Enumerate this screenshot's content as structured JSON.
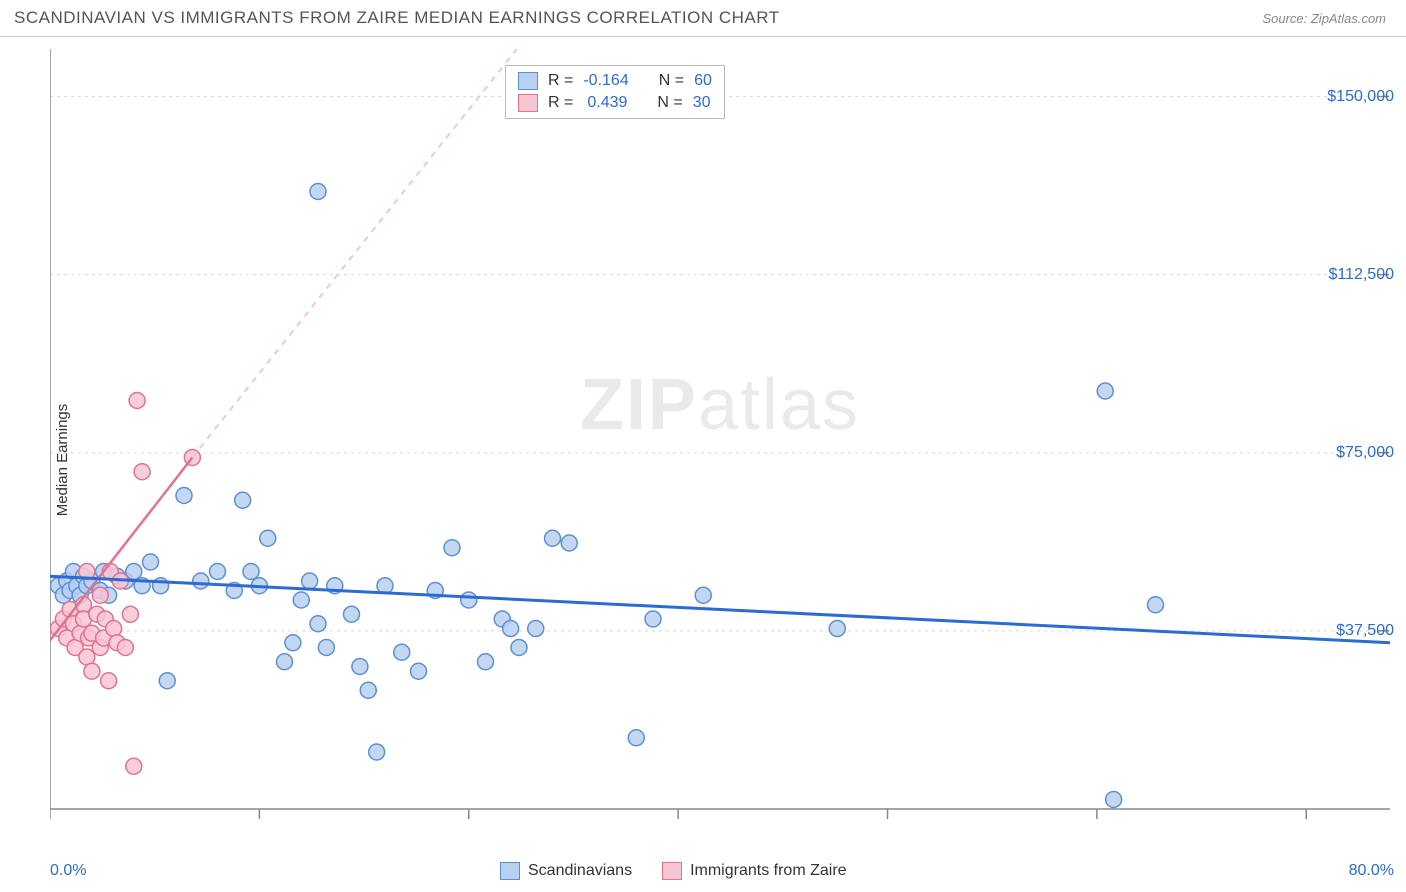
{
  "header": {
    "title": "SCANDINAVIAN VS IMMIGRANTS FROM ZAIRE MEDIAN EARNINGS CORRELATION CHART",
    "source": "Source: ZipAtlas.com"
  },
  "watermark": {
    "zip": "ZIP",
    "atlas": "atlas"
  },
  "chart": {
    "type": "scatter",
    "ylabel": "Median Earnings",
    "background_color": "#ffffff",
    "grid_color": "#d8d8d8",
    "axis_color": "#888888",
    "tick_color": "#888888",
    "label_color_axis": "#2a6bd4",
    "xlim": [
      0,
      80
    ],
    "ylim": [
      0,
      160000
    ],
    "x_axis": {
      "left_label": "0.0%",
      "right_label": "80.0%",
      "tick_positions_pct": [
        0,
        12.5,
        25,
        37.5,
        50,
        62.5,
        75
      ]
    },
    "y_axis": {
      "ticks": [
        {
          "value": 37500,
          "label": "$37,500"
        },
        {
          "value": 75000,
          "label": "$75,000"
        },
        {
          "value": 112500,
          "label": "$112,500"
        },
        {
          "value": 150000,
          "label": "$150,000"
        }
      ]
    },
    "series": [
      {
        "name": "Scandinavians",
        "marker_fill": "#b8d0ef",
        "marker_stroke": "#5b8fd6",
        "marker_radius": 8,
        "marker_opacity": 0.85,
        "R": "-0.164",
        "N": "60",
        "trend": {
          "color": "#2a6bd4",
          "width": 3,
          "dash": "none",
          "x1": 0,
          "y1": 49000,
          "x2": 80,
          "y2": 35000
        },
        "points": [
          [
            0.5,
            47000
          ],
          [
            0.8,
            45000
          ],
          [
            1.0,
            48000
          ],
          [
            1.2,
            46000
          ],
          [
            1.4,
            50000
          ],
          [
            1.6,
            47000
          ],
          [
            1.8,
            45000
          ],
          [
            2.0,
            49000
          ],
          [
            2.2,
            47000
          ],
          [
            2.5,
            48000
          ],
          [
            3.0,
            46000
          ],
          [
            3.2,
            50000
          ],
          [
            3.5,
            45000
          ],
          [
            4.0,
            49000
          ],
          [
            4.5,
            48000
          ],
          [
            5.0,
            50000
          ],
          [
            5.5,
            47000
          ],
          [
            6.0,
            52000
          ],
          [
            6.6,
            47000
          ],
          [
            7.0,
            27000
          ],
          [
            8.0,
            66000
          ],
          [
            9.0,
            48000
          ],
          [
            10.0,
            50000
          ],
          [
            11.0,
            46000
          ],
          [
            11.5,
            65000
          ],
          [
            12.0,
            50000
          ],
          [
            12.5,
            47000
          ],
          [
            13.0,
            57000
          ],
          [
            14.0,
            31000
          ],
          [
            14.5,
            35000
          ],
          [
            15.0,
            44000
          ],
          [
            15.5,
            48000
          ],
          [
            16.0,
            130000
          ],
          [
            16.0,
            39000
          ],
          [
            16.5,
            34000
          ],
          [
            17.0,
            47000
          ],
          [
            18.0,
            41000
          ],
          [
            18.5,
            30000
          ],
          [
            19.0,
            25000
          ],
          [
            20.0,
            47000
          ],
          [
            19.5,
            12000
          ],
          [
            21.0,
            33000
          ],
          [
            22.0,
            29000
          ],
          [
            23.0,
            46000
          ],
          [
            24.0,
            55000
          ],
          [
            25.0,
            44000
          ],
          [
            26.0,
            31000
          ],
          [
            27.0,
            40000
          ],
          [
            27.5,
            38000
          ],
          [
            28.0,
            34000
          ],
          [
            29.0,
            38000
          ],
          [
            30.0,
            57000
          ],
          [
            31.0,
            56000
          ],
          [
            35.0,
            15000
          ],
          [
            36.0,
            40000
          ],
          [
            39.0,
            45000
          ],
          [
            47.0,
            38000
          ],
          [
            63.0,
            88000
          ],
          [
            63.5,
            2000
          ],
          [
            66.0,
            43000
          ]
        ]
      },
      {
        "name": "Immigrants from Zaire",
        "marker_fill": "#f6c5d4",
        "marker_stroke": "#e2728f",
        "marker_radius": 8,
        "marker_opacity": 0.85,
        "R": "0.439",
        "N": "30",
        "trend": {
          "color": "#e2728f",
          "width": 2.5,
          "dash": "none",
          "x1": 0,
          "y1": 35500,
          "x2": 8.5,
          "y2": 74000
        },
        "trend_ext": {
          "color": "#f3c6d0",
          "width": 2,
          "dash": "6,6",
          "x1": 8.5,
          "y1": 74000,
          "x2": 29,
          "y2": 165000
        },
        "points": [
          [
            0.5,
            38000
          ],
          [
            0.8,
            40000
          ],
          [
            1.0,
            36000
          ],
          [
            1.2,
            42000
          ],
          [
            1.4,
            39000
          ],
          [
            1.5,
            34000
          ],
          [
            1.8,
            37000
          ],
          [
            2.0,
            43000
          ],
          [
            2.0,
            40000
          ],
          [
            2.2,
            32000
          ],
          [
            2.2,
            50000
          ],
          [
            2.3,
            36000
          ],
          [
            2.5,
            37000
          ],
          [
            2.5,
            29000
          ],
          [
            2.8,
            41000
          ],
          [
            3.0,
            34000
          ],
          [
            3.0,
            45000
          ],
          [
            3.2,
            36000
          ],
          [
            3.3,
            40000
          ],
          [
            3.5,
            27000
          ],
          [
            3.6,
            50000
          ],
          [
            3.8,
            38000
          ],
          [
            4.0,
            35000
          ],
          [
            4.2,
            48000
          ],
          [
            4.5,
            34000
          ],
          [
            4.8,
            41000
          ],
          [
            5.0,
            9000
          ],
          [
            5.2,
            86000
          ],
          [
            5.5,
            71000
          ],
          [
            8.5,
            74000
          ]
        ]
      }
    ],
    "legend_top": {
      "r_label": "R =",
      "n_label": "N ="
    },
    "legend_bottom": [
      {
        "swatch_fill": "#b8d0ef",
        "swatch_stroke": "#5b8fd6",
        "label": "Scandinavians"
      },
      {
        "swatch_fill": "#f6c5d4",
        "swatch_stroke": "#e2728f",
        "label": "Immigrants from Zaire"
      }
    ]
  }
}
